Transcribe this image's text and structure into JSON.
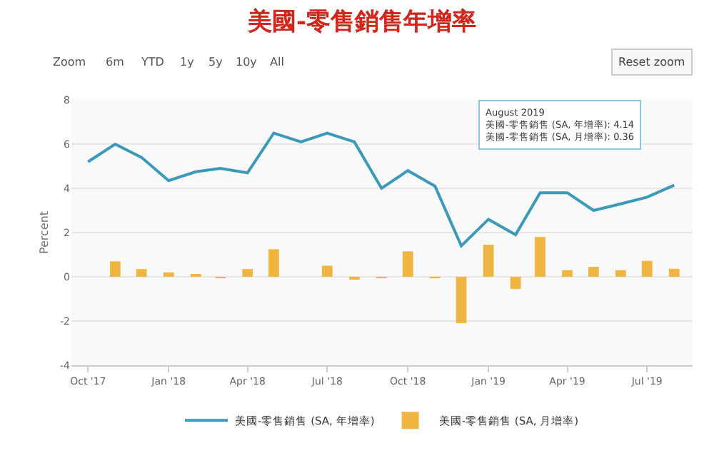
{
  "chart_data": {
    "type": "bar",
    "title": "美國-零售銷售年增率",
    "ylabel": "Percent",
    "x": [
      "2017-10",
      "2017-11",
      "2017-12",
      "2018-01",
      "2018-02",
      "2018-03",
      "2018-04",
      "2018-05",
      "2018-06",
      "2018-07",
      "2018-08",
      "2018-09",
      "2018-10",
      "2018-11",
      "2018-12",
      "2019-01",
      "2019-02",
      "2019-03",
      "2019-04",
      "2019-05",
      "2019-06",
      "2019-07",
      "2019-08"
    ],
    "series": [
      {
        "name": "美國-零售銷售 (SA, 年增率)",
        "type": "line",
        "color": "#3b9ab8",
        "values": [
          5.2,
          6.0,
          5.4,
          4.35,
          4.75,
          4.9,
          4.7,
          6.5,
          6.1,
          6.5,
          6.1,
          4.0,
          4.8,
          4.1,
          1.4,
          2.6,
          1.9,
          3.8,
          3.8,
          3.0,
          3.3,
          3.6,
          4.14
        ]
      },
      {
        "name": "美國-零售銷售 (SA, 月增率)",
        "color": "#f0b440",
        "values": [
          null,
          0.7,
          0.35,
          0.2,
          0.1,
          -0.05,
          0.35,
          1.25,
          null,
          0.5,
          -0.1,
          -0.05,
          1.15,
          -0.02,
          -2.1,
          1.45,
          -0.55,
          1.8,
          0.3,
          0.45,
          0.3,
          0.72,
          0.36
        ]
      }
    ],
    "xlim": [
      "2017-09-12",
      "2019-08-22"
    ],
    "xticks": [
      {
        "value": "2017-10",
        "label": "Oct '17"
      },
      {
        "value": "2018-01",
        "label": "Jan '18"
      },
      {
        "value": "2018-04",
        "label": "Apr '18"
      },
      {
        "value": "2018-07",
        "label": "Jul '18"
      },
      {
        "value": "2018-10",
        "label": "Oct '18"
      },
      {
        "value": "2019-01",
        "label": "Jan '19"
      },
      {
        "value": "2019-04",
        "label": "Apr '19"
      },
      {
        "value": "2019-07",
        "label": "Jul '19"
      }
    ],
    "ylim": [
      -4,
      8
    ],
    "yticks": [
      -4,
      -2,
      0,
      2,
      4,
      6,
      8
    ],
    "grid": "y",
    "legend": "bottom",
    "marker": "none",
    "line_style": "solid",
    "annotations": [
      "Zoom",
      "6m",
      "YTD",
      "1y",
      "5y",
      "10y",
      "All",
      "Reset zoom",
      "August 2019",
      "美國-零售銷售 (SA, 年增率): 4.14",
      "美國-零售銷售 (SA, 月增率): 0.36"
    ]
  }
}
